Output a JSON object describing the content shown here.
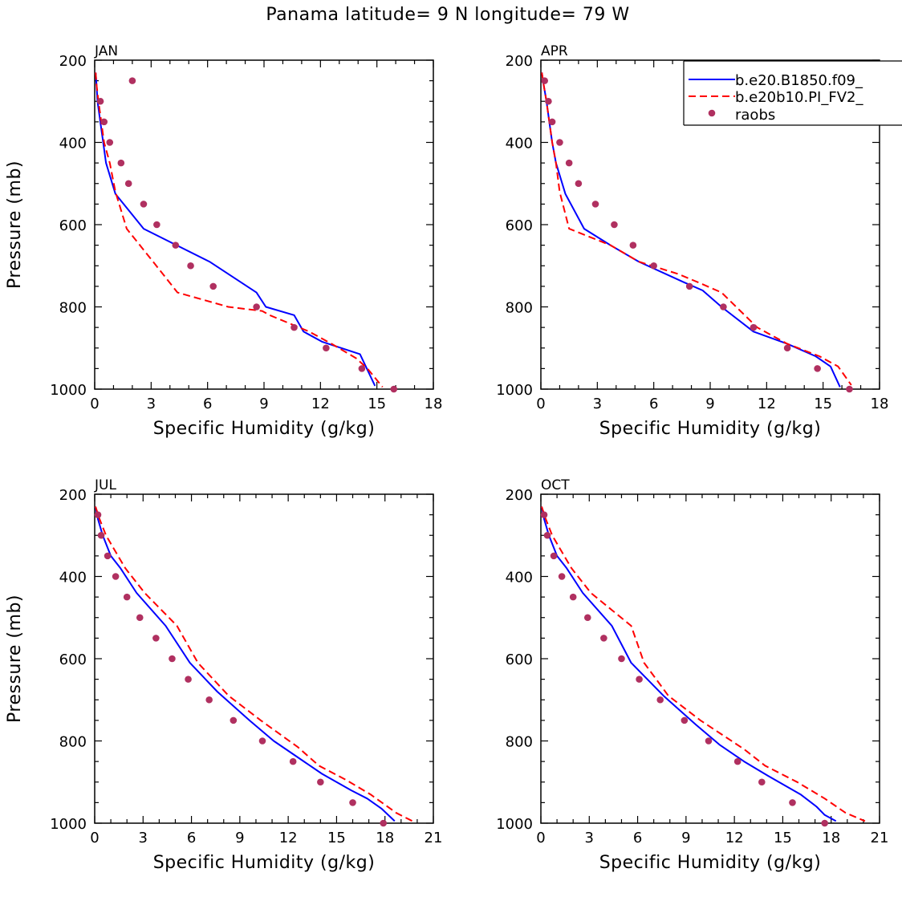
{
  "title": "Panama  latitude= 9 N longitude= 79 W",
  "legend": [
    {
      "label": "b.e20.B1850.f09_",
      "style": "solid",
      "color": "#0000ff"
    },
    {
      "label": "b.e20b10.PI_FV2_",
      "style": "dashed",
      "color": "#ff0000"
    },
    {
      "label": "raobs",
      "style": "dot",
      "color": "#b03060"
    }
  ],
  "chart_data": [
    {
      "type": "line",
      "title": "JAN",
      "xlabel": "Specific Humidity (g/kg)",
      "ylabel": "Pressure (mb)",
      "xlim": [
        0,
        18
      ],
      "ylim": [
        1000,
        200
      ],
      "xticks": [
        "0",
        "3",
        "6",
        "9",
        "12",
        "15",
        "18"
      ],
      "yticks": [
        "200",
        "400",
        "600",
        "800",
        "1000"
      ],
      "series": [
        {
          "name": "b.e20.B1850.f09_",
          "x": [
            0.05,
            0.1,
            0.15,
            0.3,
            0.45,
            0.6,
            1.1,
            2.6,
            6.1,
            8.6,
            9.1,
            10.6,
            11.1,
            12.1,
            14.1,
            14.9
          ],
          "y": [
            230,
            260,
            300,
            350,
            400,
            450,
            525,
            610,
            690,
            765,
            800,
            820,
            860,
            885,
            915,
            992
          ]
        },
        {
          "name": "b.e20b10.PI_FV2_",
          "x": [
            0.05,
            0.1,
            0.2,
            0.35,
            0.5,
            0.8,
            1.1,
            1.7,
            3.1,
            4.4,
            7.1,
            8.9,
            9.3,
            11.4,
            12.6,
            13.9,
            14.5,
            15.3
          ],
          "y": [
            230,
            260,
            300,
            350,
            400,
            450,
            520,
            610,
            690,
            765,
            800,
            810,
            820,
            860,
            890,
            925,
            950,
            995
          ]
        },
        {
          "name": "raobs",
          "x": [
            2.0,
            0.3,
            0.5,
            0.8,
            1.4,
            1.8,
            2.6,
            3.3,
            4.3,
            5.1,
            6.3,
            8.6,
            10.6,
            12.3,
            14.2,
            15.9
          ],
          "y": [
            250,
            300,
            350,
            400,
            450,
            500,
            550,
            600,
            650,
            700,
            750,
            800,
            850,
            900,
            950,
            1000
          ]
        }
      ]
    },
    {
      "type": "line",
      "title": "APR",
      "xlabel": "Specific Humidity (g/kg)",
      "ylabel": "",
      "xlim": [
        0,
        18
      ],
      "ylim": [
        1000,
        200
      ],
      "xticks": [
        "0",
        "3",
        "6",
        "9",
        "12",
        "15",
        "18"
      ],
      "yticks": [
        "200",
        "400",
        "600",
        "800",
        "1000"
      ],
      "series": [
        {
          "name": "b.e20.B1850.f09_",
          "x": [
            0.05,
            0.15,
            0.3,
            0.45,
            0.6,
            0.8,
            1.3,
            2.3,
            3.7,
            5.2,
            7.6,
            8.6,
            9.6,
            11.3,
            13.1,
            14.6,
            15.4,
            15.9
          ],
          "y": [
            230,
            260,
            300,
            350,
            400,
            450,
            525,
            610,
            650,
            690,
            740,
            760,
            800,
            860,
            890,
            920,
            945,
            995
          ]
        },
        {
          "name": "b.e20b10.PI_FV2_",
          "x": [
            0.05,
            0.15,
            0.3,
            0.45,
            0.6,
            0.8,
            1.0,
            1.5,
            3.7,
            5.2,
            7.3,
            8.6,
            9.6,
            11.5,
            13.1,
            14.8,
            15.8,
            16.5
          ],
          "y": [
            230,
            260,
            300,
            350,
            400,
            450,
            520,
            610,
            650,
            690,
            720,
            745,
            765,
            850,
            890,
            920,
            945,
            990
          ]
        },
        {
          "name": "raobs",
          "x": [
            0.2,
            0.4,
            0.6,
            1.0,
            1.5,
            2.0,
            2.9,
            3.9,
            4.9,
            6.0,
            7.9,
            9.7,
            11.3,
            13.1,
            14.7,
            16.4
          ],
          "y": [
            250,
            300,
            350,
            400,
            450,
            500,
            550,
            600,
            650,
            700,
            750,
            800,
            850,
            900,
            950,
            1000
          ]
        }
      ]
    },
    {
      "type": "line",
      "title": "JUL",
      "xlabel": "Specific Humidity (g/kg)",
      "ylabel": "Pressure (mb)",
      "xlim": [
        0,
        21
      ],
      "ylim": [
        1000,
        200
      ],
      "xticks": [
        "0",
        "3",
        "6",
        "9",
        "12",
        "15",
        "18",
        "21"
      ],
      "yticks": [
        "200",
        "400",
        "600",
        "800",
        "1000"
      ],
      "series": [
        {
          "name": "b.e20.B1850.f09_",
          "x": [
            0.05,
            0.2,
            0.5,
            1.0,
            1.6,
            2.6,
            4.4,
            5.9,
            7.6,
            9.6,
            11.1,
            12.6,
            14.1,
            15.9,
            16.9,
            17.8,
            18.6
          ],
          "y": [
            230,
            260,
            300,
            350,
            380,
            440,
            520,
            610,
            680,
            750,
            800,
            840,
            880,
            920,
            940,
            965,
            995
          ]
        },
        {
          "name": "b.e20b10.PI_FV2_",
          "x": [
            0.05,
            0.3,
            0.7,
            1.3,
            1.9,
            3.1,
            5.1,
            6.4,
            8.3,
            10.3,
            12.6,
            13.9,
            15.6,
            17.1,
            18.7,
            19.7
          ],
          "y": [
            230,
            260,
            300,
            340,
            380,
            440,
            520,
            610,
            690,
            750,
            815,
            860,
            895,
            930,
            975,
            995
          ]
        },
        {
          "name": "raobs",
          "x": [
            0.2,
            0.4,
            0.8,
            1.3,
            2.0,
            2.8,
            3.8,
            4.8,
            5.8,
            7.1,
            8.6,
            10.4,
            12.3,
            14.0,
            16.0,
            17.9
          ],
          "y": [
            250,
            300,
            350,
            400,
            450,
            500,
            550,
            600,
            650,
            700,
            750,
            800,
            850,
            900,
            950,
            1000
          ]
        }
      ]
    },
    {
      "type": "line",
      "title": "OCT",
      "xlabel": "Specific Humidity (g/kg)",
      "ylabel": "",
      "xlim": [
        0,
        21
      ],
      "ylim": [
        1000,
        200
      ],
      "xticks": [
        "0",
        "3",
        "6",
        "9",
        "12",
        "15",
        "18",
        "21"
      ],
      "yticks": [
        "200",
        "400",
        "600",
        "800",
        "1000"
      ],
      "series": [
        {
          "name": "b.e20.B1850.f09_",
          "x": [
            0.05,
            0.2,
            0.5,
            1.0,
            1.6,
            2.6,
            4.4,
            5.6,
            7.6,
            9.6,
            11.1,
            12.6,
            14.1,
            16.1,
            17.1,
            17.6,
            18.3
          ],
          "y": [
            230,
            260,
            300,
            350,
            380,
            440,
            520,
            610,
            690,
            760,
            810,
            850,
            885,
            930,
            960,
            980,
            995
          ]
        },
        {
          "name": "b.e20b10.PI_FV2_",
          "x": [
            0.05,
            0.3,
            0.7,
            1.3,
            1.9,
            3.1,
            5.6,
            6.4,
            7.9,
            9.9,
            12.6,
            13.9,
            15.9,
            17.6,
            18.9,
            20.1
          ],
          "y": [
            230,
            260,
            300,
            340,
            380,
            440,
            520,
            610,
            690,
            750,
            820,
            860,
            900,
            940,
            975,
            995
          ]
        },
        {
          "name": "raobs",
          "x": [
            0.2,
            0.4,
            0.8,
            1.3,
            2.0,
            2.9,
            3.9,
            5.0,
            6.1,
            7.4,
            8.9,
            10.4,
            12.2,
            13.7,
            15.6,
            17.6
          ],
          "y": [
            250,
            300,
            350,
            400,
            450,
            500,
            550,
            600,
            650,
            700,
            750,
            800,
            850,
            900,
            950,
            1000
          ]
        }
      ]
    }
  ]
}
